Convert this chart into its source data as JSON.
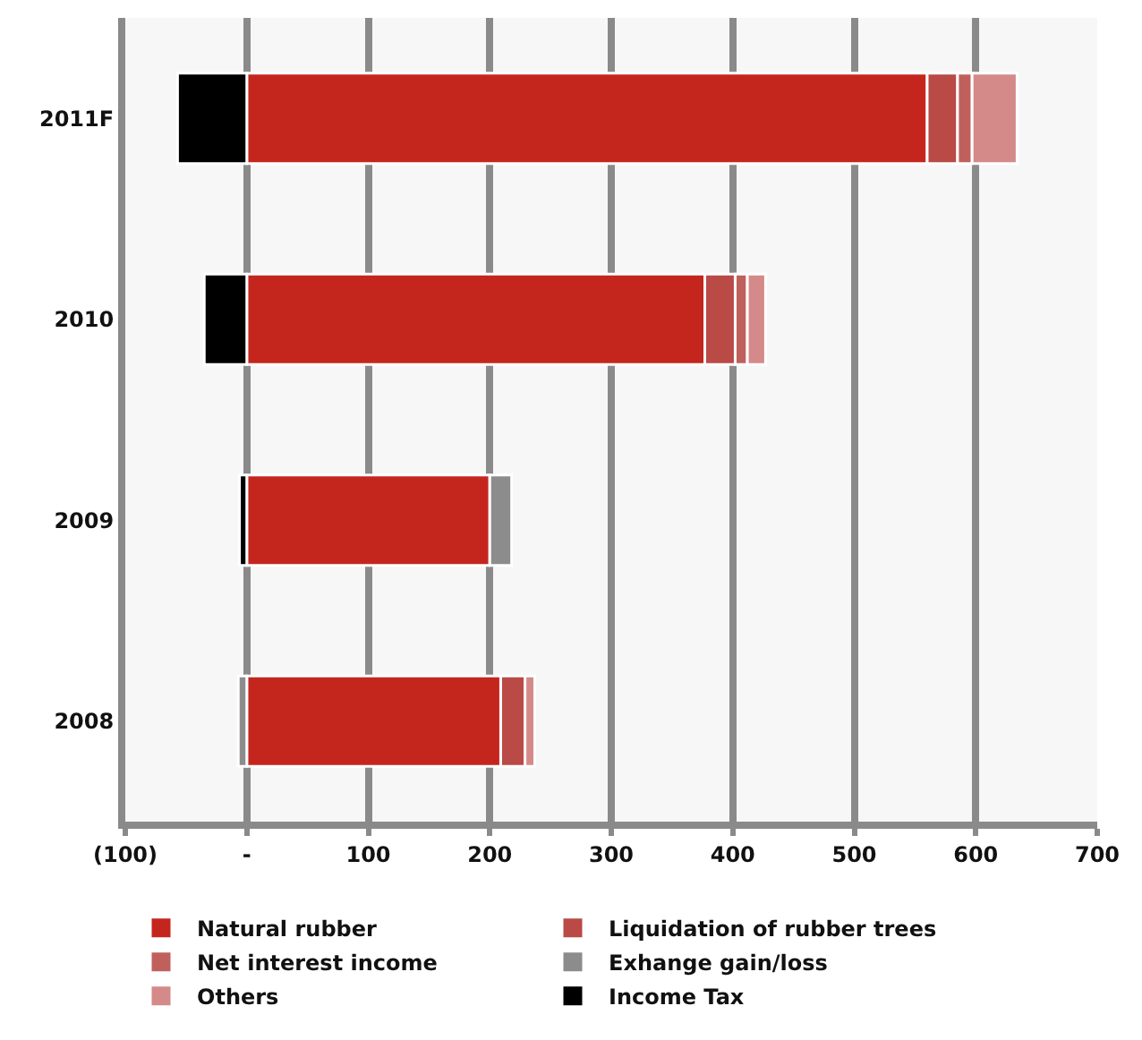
{
  "chart_data": {
    "type": "bar",
    "orientation": "horizontal",
    "stacked": true,
    "categories": [
      "2011F",
      "2010",
      "2009",
      "2008"
    ],
    "series": [
      {
        "name": "Natural rubber",
        "color": "#c4261e",
        "values": [
          560,
          377,
          200,
          209
        ]
      },
      {
        "name": "Liquidation of rubber trees",
        "color": "#b94a46",
        "values": [
          25,
          25,
          null,
          20
        ]
      },
      {
        "name": "Net interest income",
        "color": "#c0605c",
        "values": [
          12,
          10,
          null,
          null
        ]
      },
      {
        "name": "Exhange gain/loss",
        "color": "#8c8c8c",
        "values": [
          null,
          null,
          18,
          -7
        ]
      },
      {
        "name": "Others",
        "color": "#d48a88",
        "values": [
          37,
          15,
          null,
          8
        ]
      },
      {
        "name": "Income Tax",
        "color": "#000000",
        "values": [
          -57,
          -35,
          -6,
          null
        ]
      }
    ],
    "xlim": [
      -100,
      700
    ],
    "xticks": [
      {
        "value": -100,
        "label": "(100)"
      },
      {
        "value": 0,
        "label": "-"
      },
      100,
      200,
      300,
      400,
      500,
      600,
      700
    ],
    "grid": "x",
    "legend": "bottom"
  }
}
